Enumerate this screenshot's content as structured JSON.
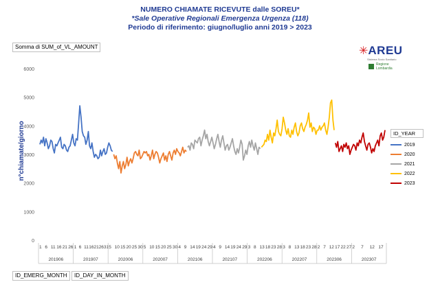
{
  "title": {
    "line1": "NUMERO CHIAMATE RICEVUTE dalle SOREU*",
    "line2": "*Sale Operative Regionali Emergenza Urgenza (118)",
    "line3": "Periodo di riferimento: giugno/luglio anni 2019 > 2023"
  },
  "pivot": {
    "value_field": "Somma di SUM_of_VL_AMOUNT",
    "row_field_1": "ID_EMERG_MONTH",
    "row_field_2": "ID_DAY_IN_MONTH",
    "legend_field": "ID_YEAR"
  },
  "logo": {
    "name": "AREU",
    "subtitle": "Sistema Socio Sanitario",
    "region_line1": "Regione",
    "region_line2": "Lombardia"
  },
  "chart_data": {
    "type": "line",
    "ylabel": "n°chiamate/giorno",
    "ylim": [
      0,
      6000
    ],
    "yticks": [
      0,
      1000,
      2000,
      3000,
      4000,
      5000,
      6000
    ],
    "grid": false,
    "legend_position": "right",
    "day_ticks": [
      {
        "group": "201906",
        "labels": [
          "1",
          "6",
          "11",
          "16",
          "21",
          "26"
        ]
      },
      {
        "group": "201907",
        "labels": [
          "1",
          "6",
          "11",
          "16",
          "21",
          "26",
          "31"
        ]
      },
      {
        "group": "202006",
        "labels": [
          "5",
          "10",
          "15",
          "20",
          "25",
          "30"
        ]
      },
      {
        "group": "202007",
        "labels": [
          "5",
          "10",
          "15",
          "20",
          "25",
          "30"
        ]
      },
      {
        "group": "202106",
        "labels": [
          "4",
          "9",
          "14",
          "19",
          "24",
          "29"
        ]
      },
      {
        "group": "202107",
        "labels": [
          "4",
          "9",
          "14",
          "19",
          "24",
          "29"
        ]
      },
      {
        "group": "202206",
        "labels": [
          "3",
          "8",
          "13",
          "18",
          "23",
          "28"
        ]
      },
      {
        "group": "202207",
        "labels": [
          "3",
          "8",
          "13",
          "18",
          "23",
          "28"
        ]
      },
      {
        "group": "202306",
        "labels": [
          "2",
          "7",
          "12",
          "17",
          "22",
          "27"
        ]
      },
      {
        "group": "202307",
        "labels": [
          "2",
          "7",
          "12",
          "17"
        ]
      }
    ],
    "months": [
      "201906",
      "201907",
      "202006",
      "202007",
      "202106",
      "202107",
      "202206",
      "202207",
      "202306",
      "202307"
    ],
    "series": [
      {
        "name": "2019",
        "color": "#4472c4",
        "start": 0,
        "values": [
          3350,
          3500,
          3400,
          3600,
          3300,
          3550,
          3400,
          3200,
          3300,
          3500,
          3450,
          3200,
          3050,
          3350,
          3300,
          3400,
          3500,
          3600,
          3250,
          3200,
          3350,
          3300,
          3150,
          3100,
          3250,
          3300,
          3500,
          3700,
          3400,
          3300,
          3550,
          3500,
          4100,
          4700,
          4300,
          3800,
          3650,
          3600,
          3350,
          3500,
          3800,
          3300,
          3200,
          3400,
          3100,
          2900,
          3000,
          2950,
          2850,
          2900,
          3150,
          2950,
          3100,
          3200,
          3000,
          3050,
          3250,
          3400,
          3300,
          3150,
          3100
        ]
      },
      {
        "name": "2020",
        "color": "#ed7d31",
        "start": 61,
        "values": [
          3000,
          2850,
          2950,
          2700,
          2500,
          2750,
          2350,
          2600,
          2750,
          2500,
          2650,
          2900,
          2600,
          2750,
          2850,
          2700,
          2850,
          3050,
          3100,
          3000,
          2950,
          3150,
          2850,
          2900,
          3000,
          3100,
          3050,
          3100,
          2950,
          3000,
          2800,
          2950,
          3150,
          2850,
          3000,
          3100,
          3050,
          2900,
          2700,
          2850,
          2950,
          3050,
          2800,
          2950,
          2750,
          3000,
          3100,
          2950,
          2800,
          3050,
          3150,
          3000,
          3200,
          3100,
          3050,
          2950,
          3100,
          3250,
          3050,
          3150,
          3100
        ]
      },
      {
        "name": "2021",
        "color": "#a5a5a5",
        "start": 122,
        "values": [
          3250,
          3300,
          3150,
          3400,
          3350,
          3200,
          3500,
          3450,
          3400,
          3550,
          3600,
          3300,
          3500,
          3650,
          3850,
          3550,
          3700,
          3450,
          3300,
          3450,
          3600,
          3400,
          3200,
          3350,
          3550,
          3700,
          3450,
          3250,
          3500,
          3650,
          3400,
          3150,
          3300,
          3350,
          3150,
          3250,
          3400,
          3550,
          3300,
          3100,
          3000,
          3200,
          3050,
          3250,
          3500,
          3350,
          2800,
          2950,
          3150,
          3000,
          3300,
          3450,
          3250,
          3500,
          3300,
          3150,
          3400,
          3200,
          3000,
          3250,
          3200
        ]
      },
      {
        "name": "2022",
        "color": "#ffc000",
        "start": 183,
        "values": [
          3250,
          3300,
          3350,
          3500,
          3450,
          3700,
          3500,
          3850,
          3600,
          3400,
          3750,
          3650,
          3900,
          4200,
          3800,
          3700,
          3650,
          3900,
          4300,
          4100,
          3850,
          3700,
          3900,
          3650,
          3600,
          3850,
          3700,
          3950,
          4100,
          3800,
          3650,
          3750,
          4000,
          4100,
          3900,
          3800,
          3950,
          4050,
          4200,
          4450,
          3950,
          4100,
          3800,
          3950,
          3900,
          3700,
          3850,
          3850,
          4000,
          3850,
          3950,
          4000,
          4100,
          3850,
          3700,
          3950,
          4300,
          4800,
          4900,
          4200,
          3850
        ]
      },
      {
        "name": "2023",
        "color": "#c00000",
        "start": 244,
        "values": [
          3400,
          3250,
          3450,
          3100,
          3200,
          3300,
          3100,
          3350,
          3250,
          3400,
          3200,
          3300,
          3000,
          3150,
          3250,
          3350,
          3300,
          3150,
          3400,
          3300,
          3500,
          3400,
          3600,
          3750,
          3450,
          3300,
          3150,
          3350,
          3400,
          3250,
          3050,
          3200,
          3100,
          3300,
          3400,
          3500,
          3300,
          3650,
          3750,
          3500,
          3600,
          3850
        ]
      }
    ]
  }
}
